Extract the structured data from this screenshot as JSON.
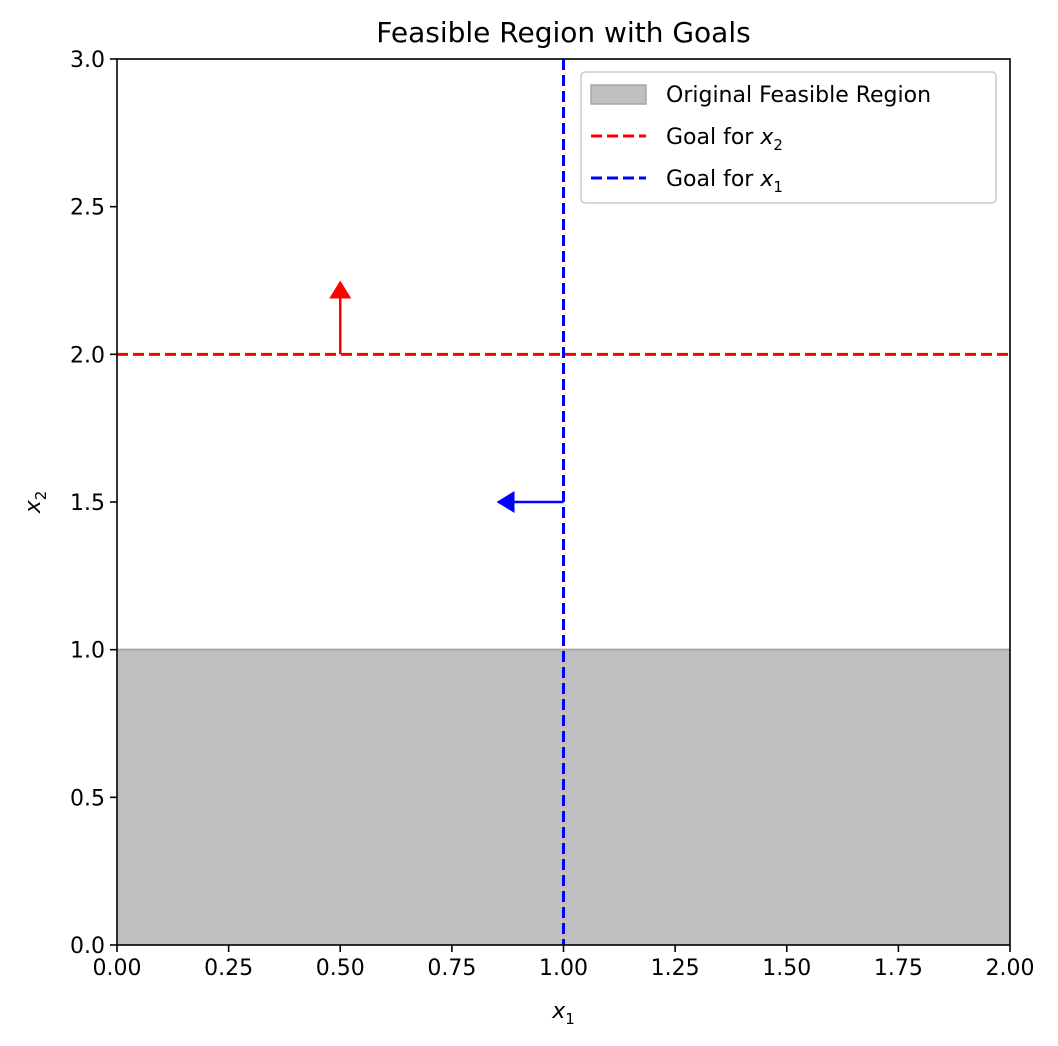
{
  "chart_data": {
    "type": "line",
    "title": "Feasible Region with Goals",
    "xlabel": {
      "base": "x",
      "sub": "1"
    },
    "ylabel": {
      "base": "x",
      "sub": "2"
    },
    "xlim": [
      0,
      2
    ],
    "ylim": [
      0,
      3
    ],
    "xticks": [
      0,
      0.25,
      0.5,
      0.75,
      1.0,
      1.25,
      1.5,
      1.75,
      2.0
    ],
    "xtick_labels": [
      "0.00",
      "0.25",
      "0.50",
      "0.75",
      "1.00",
      "1.25",
      "1.50",
      "1.75",
      "2.00"
    ],
    "yticks": [
      0,
      0.5,
      1.0,
      1.5,
      2.0,
      2.5,
      3.0
    ],
    "ytick_labels": [
      "0.0",
      "0.5",
      "1.0",
      "1.5",
      "2.0",
      "2.5",
      "3.0"
    ],
    "grid": false,
    "legend_position": "top-right",
    "feasible_region": {
      "x": [
        0,
        2
      ],
      "y": [
        0,
        1
      ],
      "color": "#bfbfbf",
      "edge_color": "#a6a6a6"
    },
    "series": [
      {
        "name": "Original Feasible Region",
        "kind": "region",
        "color": "#bfbfbf"
      },
      {
        "name": "Goal for x2",
        "label_base": "Goal for ",
        "label_var": "x",
        "label_sub": "2",
        "kind": "hline",
        "y": 2.0,
        "color": "#ff0000",
        "style": "dashed"
      },
      {
        "name": "Goal for x1",
        "label_base": "Goal for ",
        "label_var": "x",
        "label_sub": "1",
        "kind": "vline",
        "x": 1.0,
        "color": "#0000ff",
        "style": "dashed"
      }
    ],
    "arrows": [
      {
        "from": [
          0.5,
          2.0
        ],
        "to": [
          0.5,
          2.25
        ],
        "color": "#ff0000"
      },
      {
        "from": [
          1.0,
          1.5
        ],
        "to": [
          0.85,
          1.5
        ],
        "color": "#0000ff"
      }
    ]
  }
}
